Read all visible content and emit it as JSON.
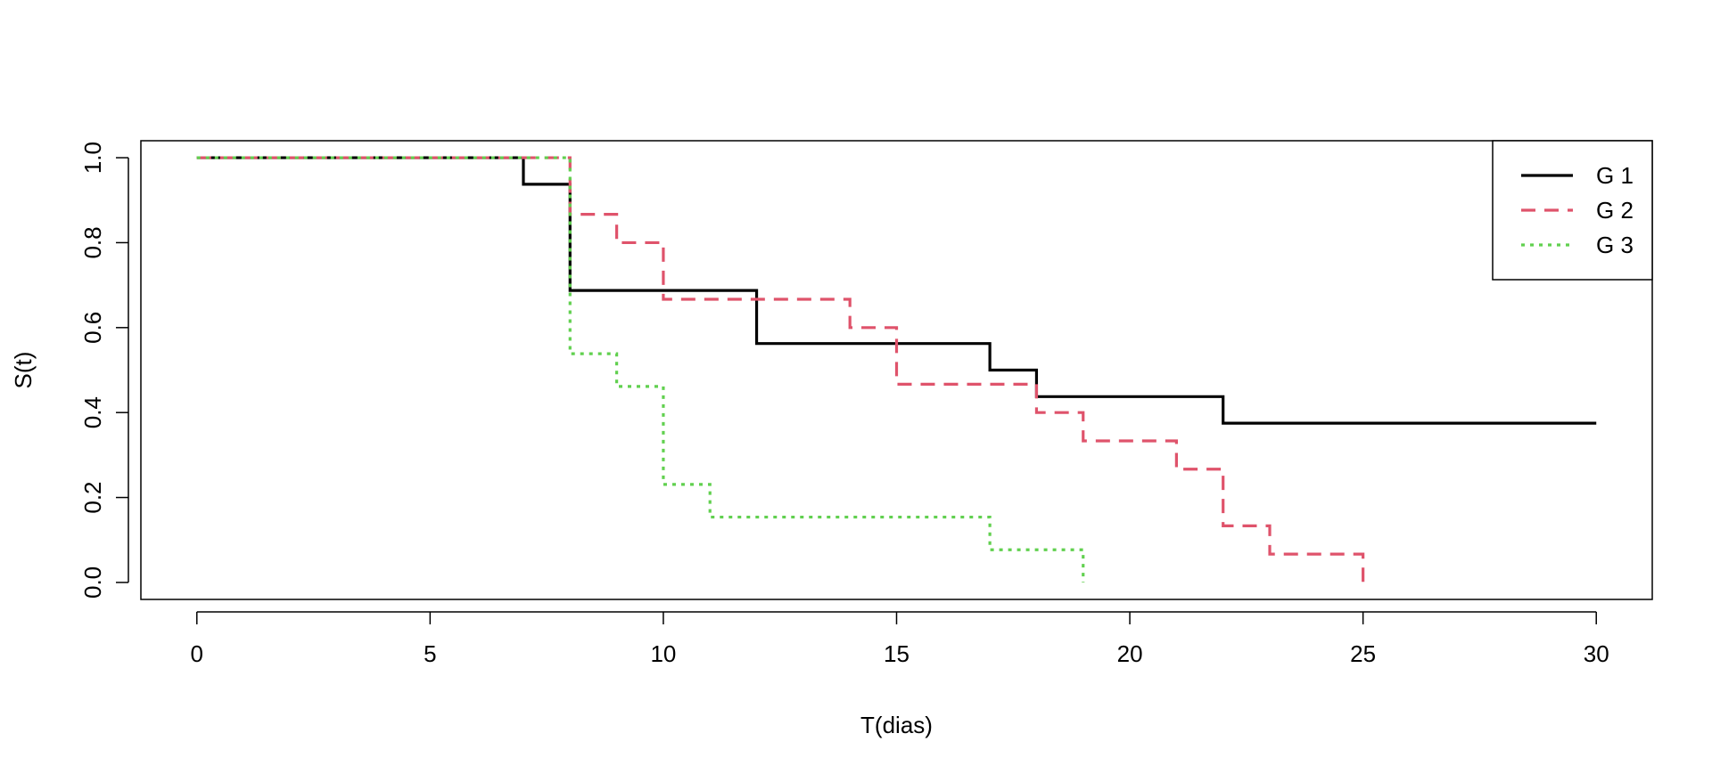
{
  "chart_data": {
    "type": "line",
    "xlabel": "T(dias)",
    "ylabel": "S(t)",
    "xlim": [
      -1.2,
      31.2
    ],
    "ylim": [
      -0.04,
      1.04
    ],
    "x_ticks": [
      0,
      5,
      10,
      15,
      20,
      25,
      30
    ],
    "y_ticks": [
      0.0,
      0.2,
      0.4,
      0.6,
      0.8,
      1.0
    ],
    "x_tick_labels": [
      "0",
      "5",
      "10",
      "15",
      "20",
      "25",
      "30"
    ],
    "y_tick_labels": [
      "0.0",
      "0.2",
      "0.4",
      "0.6",
      "0.8",
      "1.0"
    ],
    "grid": false,
    "step": true,
    "legend": {
      "position": "top-right",
      "boxed": true
    },
    "series": [
      {
        "name": "G 1",
        "color": "#000000",
        "dash": "solid",
        "x": [
          0,
          7,
          8,
          12,
          17,
          18,
          22,
          30
        ],
        "y": [
          1.0,
          0.9375,
          0.6875,
          0.5625,
          0.5,
          0.4375,
          0.375,
          0.375
        ]
      },
      {
        "name": "G 2",
        "color": "#DF536B",
        "dash": "dashed",
        "x": [
          0,
          8,
          9,
          10,
          14,
          15,
          18,
          19,
          21,
          22,
          23,
          25
        ],
        "y": [
          1.0,
          0.8667,
          0.8,
          0.6667,
          0.6,
          0.4667,
          0.4,
          0.3333,
          0.2667,
          0.1333,
          0.0667,
          0.0
        ]
      },
      {
        "name": "G 3",
        "color": "#61D04F",
        "dash": "dotted",
        "x": [
          0,
          8,
          9,
          10,
          11,
          17,
          19
        ],
        "y": [
          1.0,
          0.5385,
          0.4615,
          0.2308,
          0.1538,
          0.0769,
          0.0
        ]
      }
    ]
  }
}
